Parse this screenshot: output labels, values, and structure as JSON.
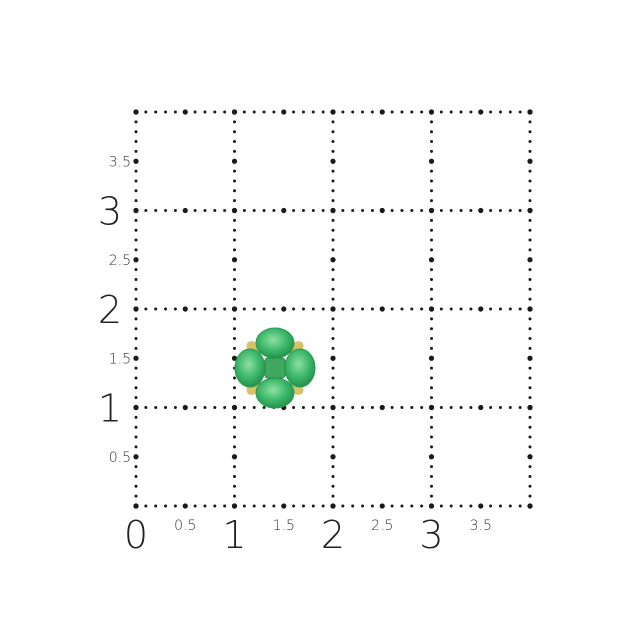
{
  "grid": {
    "x_major_labels": [
      "0",
      "1",
      "2",
      "3"
    ],
    "x_minor_labels": [
      "0.5",
      "1.5",
      "2.5",
      "3.5"
    ],
    "y_major_labels": [
      "1",
      "2",
      "3"
    ],
    "y_minor_labels": [
      "0.5",
      "1.5",
      "2.5",
      "3.5"
    ],
    "range": [
      0,
      4
    ],
    "dot_color": "#1a1a1a"
  },
  "product": {
    "type": "emerald flower stud earring",
    "stone_color": "#3cb86a",
    "metal_color": "#d9c06a"
  }
}
